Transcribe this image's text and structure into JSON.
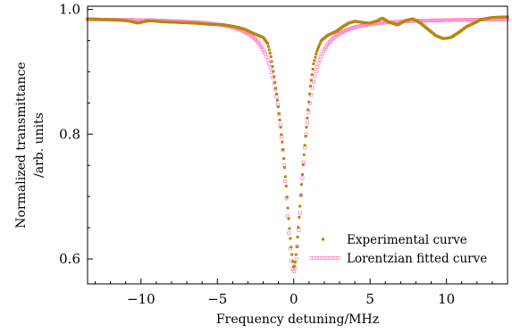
{
  "chart_data": {
    "type": "scatter",
    "xlabel": "Frequency detuning/MHz",
    "ylabel_line1": "Normalized transmittance",
    "ylabel_line2": "/arb. units",
    "xlim": [
      -13.5,
      14.0
    ],
    "ylim": [
      0.56,
      1.005
    ],
    "x_ticks": [
      -10,
      -5,
      0,
      5,
      10
    ],
    "x_tick_labels": [
      "−10",
      "−5",
      "0",
      "5",
      "10"
    ],
    "y_ticks": [
      0.6,
      0.8,
      1.0
    ],
    "y_tick_labels": [
      "0.6",
      "0.8",
      "1.0"
    ],
    "legend_position": "lower-right",
    "grid": false,
    "series": [
      {
        "name": "Experimental curve",
        "color": "#b8860b",
        "marker": "small-square",
        "points": [
          [
            -13.5,
            0.985
          ],
          [
            -12.5,
            0.984
          ],
          [
            -11.5,
            0.983
          ],
          [
            -10.7,
            0.981
          ],
          [
            -10.2,
            0.978
          ],
          [
            -9.5,
            0.982
          ],
          [
            -8.5,
            0.98
          ],
          [
            -7.5,
            0.979
          ],
          [
            -6.5,
            0.978
          ],
          [
            -5.5,
            0.976
          ],
          [
            -4.5,
            0.975
          ],
          [
            -3.8,
            0.972
          ],
          [
            -3.2,
            0.968
          ],
          [
            -2.7,
            0.962
          ],
          [
            -2.3,
            0.958
          ],
          [
            -2.0,
            0.955
          ],
          [
            -1.7,
            0.945
          ],
          [
            -1.5,
            0.925
          ],
          [
            -1.3,
            0.895
          ],
          [
            -1.1,
            0.86
          ],
          [
            -0.9,
            0.82
          ],
          [
            -0.7,
            0.775
          ],
          [
            -0.5,
            0.72
          ],
          [
            -0.35,
            0.67
          ],
          [
            -0.2,
            0.625
          ],
          [
            -0.08,
            0.598
          ],
          [
            0.0,
            0.585
          ],
          [
            0.08,
            0.592
          ],
          [
            0.2,
            0.62
          ],
          [
            0.35,
            0.665
          ],
          [
            0.5,
            0.715
          ],
          [
            0.7,
            0.775
          ],
          [
            0.9,
            0.83
          ],
          [
            1.1,
            0.878
          ],
          [
            1.3,
            0.912
          ],
          [
            1.5,
            0.932
          ],
          [
            1.8,
            0.95
          ],
          [
            2.2,
            0.958
          ],
          [
            2.8,
            0.965
          ],
          [
            3.2,
            0.972
          ],
          [
            3.6,
            0.978
          ],
          [
            4.0,
            0.981
          ],
          [
            4.5,
            0.979
          ],
          [
            5.0,
            0.978
          ],
          [
            5.5,
            0.982
          ],
          [
            5.8,
            0.986
          ],
          [
            6.2,
            0.98
          ],
          [
            6.8,
            0.975
          ],
          [
            7.3,
            0.982
          ],
          [
            7.8,
            0.985
          ],
          [
            8.3,
            0.978
          ],
          [
            8.8,
            0.968
          ],
          [
            9.3,
            0.958
          ],
          [
            9.8,
            0.953
          ],
          [
            10.3,
            0.955
          ],
          [
            10.8,
            0.963
          ],
          [
            11.3,
            0.972
          ],
          [
            11.8,
            0.978
          ],
          [
            12.3,
            0.984
          ],
          [
            13.0,
            0.987
          ],
          [
            14.0,
            0.988
          ]
        ]
      },
      {
        "name": "Lorentzian fitted curve",
        "color": "#ff88cc",
        "marker": "small-square-open",
        "model": "lorentzian",
        "baseline": 0.985,
        "depth": 0.405,
        "hwhm": 0.75,
        "center": 0.0,
        "x_range": [
          -13.5,
          14.0
        ]
      }
    ]
  }
}
